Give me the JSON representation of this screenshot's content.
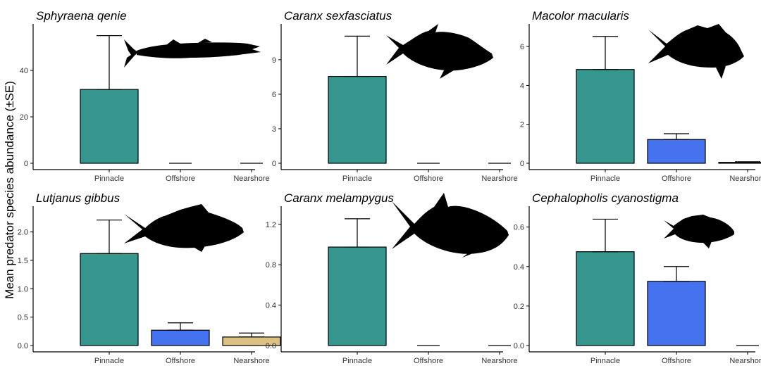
{
  "figure": {
    "ylabel": "Mean predator species abundance (±SE)",
    "colors": {
      "Pinnacle": "#36978f",
      "Offshore": "#4573f0",
      "Nearshore": "#dcc183",
      "bar_outline": "#000000",
      "axis": "#000000"
    }
  },
  "chart_data": [
    {
      "type": "bar",
      "title": "Sphyraena qenie",
      "silhouette": "barracuda-icon",
      "categories": [
        "Pinnacle",
        "Offshore",
        "Nearshore"
      ],
      "values": [
        31.8,
        0,
        0
      ],
      "se": [
        23.2,
        0,
        0
      ],
      "ylim": [
        0,
        57
      ],
      "yticks": [
        0,
        20,
        40
      ],
      "ytick_labels": [
        "0",
        "20",
        "40"
      ]
    },
    {
      "type": "bar",
      "title": "Caranx sexfasciatus",
      "silhouette": "trevally-icon",
      "categories": [
        "Pinnacle",
        "Offshore",
        "Nearshore"
      ],
      "values": [
        7.55,
        0,
        0
      ],
      "se": [
        3.5,
        0,
        0
      ],
      "ylim": [
        0,
        11.5
      ],
      "yticks": [
        0,
        3,
        6,
        9
      ],
      "ytick_labels": [
        "0",
        "3",
        "6",
        "9"
      ]
    },
    {
      "type": "bar",
      "title": "Macolor macularis",
      "silhouette": "snapper-icon",
      "categories": [
        "Pinnacle",
        "Offshore",
        "Nearshore"
      ],
      "values": [
        4.82,
        1.22,
        0.05
      ],
      "se": [
        1.7,
        0.3,
        0.03
      ],
      "ylim": [
        0,
        6.8
      ],
      "yticks": [
        0,
        2,
        4,
        6
      ],
      "ytick_labels": [
        "0",
        "2",
        "4",
        "6"
      ]
    },
    {
      "type": "bar",
      "title": "Lutjanus gibbus",
      "silhouette": "humpback-snapper-icon",
      "categories": [
        "Pinnacle",
        "Offshore",
        "Nearshore"
      ],
      "values": [
        1.62,
        0.27,
        0.15
      ],
      "se": [
        0.59,
        0.13,
        0.07
      ],
      "ylim": [
        0,
        2.33
      ],
      "yticks": [
        0,
        0.5,
        1.0,
        1.5,
        2.0
      ],
      "ytick_labels": [
        "0.0",
        "0.5",
        "1.0",
        "1.5",
        "2.0"
      ]
    },
    {
      "type": "bar",
      "title": "Caranx melampygus",
      "silhouette": "bluefin-trevally-icon",
      "categories": [
        "Pinnacle",
        "Offshore",
        "Nearshore"
      ],
      "values": [
        0.975,
        0,
        0
      ],
      "se": [
        0.28,
        0,
        0
      ],
      "ylim": [
        0,
        1.31
      ],
      "yticks": [
        0,
        0.4,
        0.8,
        1.2
      ],
      "ytick_labels": [
        "0.0",
        "0.4",
        "0.8",
        "1.2"
      ]
    },
    {
      "type": "bar",
      "title": "Cephalopholis cyanostigma",
      "silhouette": "grouper-icon",
      "categories": [
        "Pinnacle",
        "Offshore",
        "Nearshore"
      ],
      "values": [
        0.475,
        0.325,
        0
      ],
      "se": [
        0.165,
        0.075,
        0
      ],
      "ylim": [
        0,
        0.67
      ],
      "yticks": [
        0,
        0.2,
        0.4,
        0.6
      ],
      "ytick_labels": [
        "0.0",
        "0.2",
        "0.4",
        "0.6"
      ]
    }
  ]
}
